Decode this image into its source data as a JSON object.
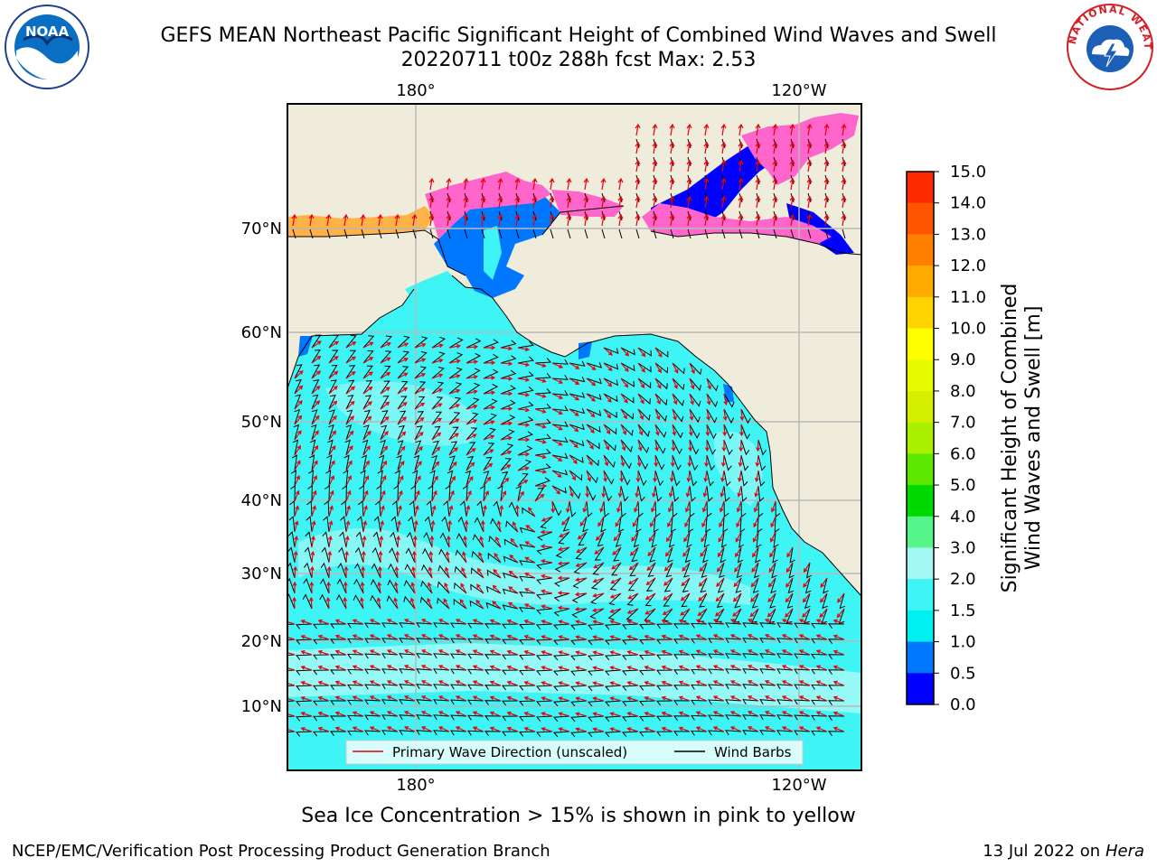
{
  "header": {
    "title_line1": "GEFS MEAN Northeast Pacific Significant Height of Combined Wind Waves and Swell",
    "title_line2": "20220711 t00z 288h fcst   Max: 2.53"
  },
  "logos": {
    "left": {
      "icon": "noaa-logo-icon",
      "text": "NOAA"
    },
    "right": {
      "icon": "nws-logo-icon",
      "text": "NATIONAL WEATHER SERVICE"
    }
  },
  "map": {
    "lon_ticks_top": [
      "180°",
      "120°W"
    ],
    "lon_ticks_bottom": [
      "180°",
      "120°W"
    ],
    "lat_ticks": [
      "70°N",
      "60°N",
      "50°N",
      "40°N",
      "30°N",
      "20°N",
      "10°N"
    ],
    "colors": {
      "land": "#efecdc",
      "ocean": "#3ff4f4",
      "light_ocean": "#a4f9f6",
      "grid": "#b8b8b8",
      "ice_pink": "#ff66cc",
      "ice_orange": "#ffb347",
      "ice_blue": "#0077ff"
    }
  },
  "legend": {
    "wave_label": "Primary Wave Direction (unscaled)",
    "barb_label": "Wind Barbs",
    "wave_color": "#e8000b",
    "barb_color": "#000000"
  },
  "colorbar": {
    "label_line1": "Significant Height of Combined",
    "label_line2": "Wind Waves and Swell [m]",
    "ticks": [
      "15.0",
      "14.0",
      "13.0",
      "12.0",
      "11.0",
      "10.0",
      "9.0",
      "8.0",
      "7.0",
      "6.0",
      "5.0",
      "4.0",
      "3.0",
      "2.0",
      "1.5",
      "1.0",
      "0.5",
      "0.0"
    ],
    "colors_top_to_bottom": [
      "#ff0000",
      "#ff2b00",
      "#ff5500",
      "#ff8000",
      "#ffaa00",
      "#ffd400",
      "#ffff00",
      "#e6fa00",
      "#d4f000",
      "#aaf000",
      "#5ce600",
      "#00d900",
      "#55f58a",
      "#a4f9f6",
      "#3ff4f4",
      "#00f0f0",
      "#0077ff",
      "#0000ff"
    ]
  },
  "caption": "Sea Ice Concentration > 15% is shown in pink to yellow",
  "footer": {
    "left": "NCEP/EMC/Verification Post Processing Product Generation Branch",
    "right_date": "13 Jul 2022 on ",
    "right_host": "Hera"
  }
}
